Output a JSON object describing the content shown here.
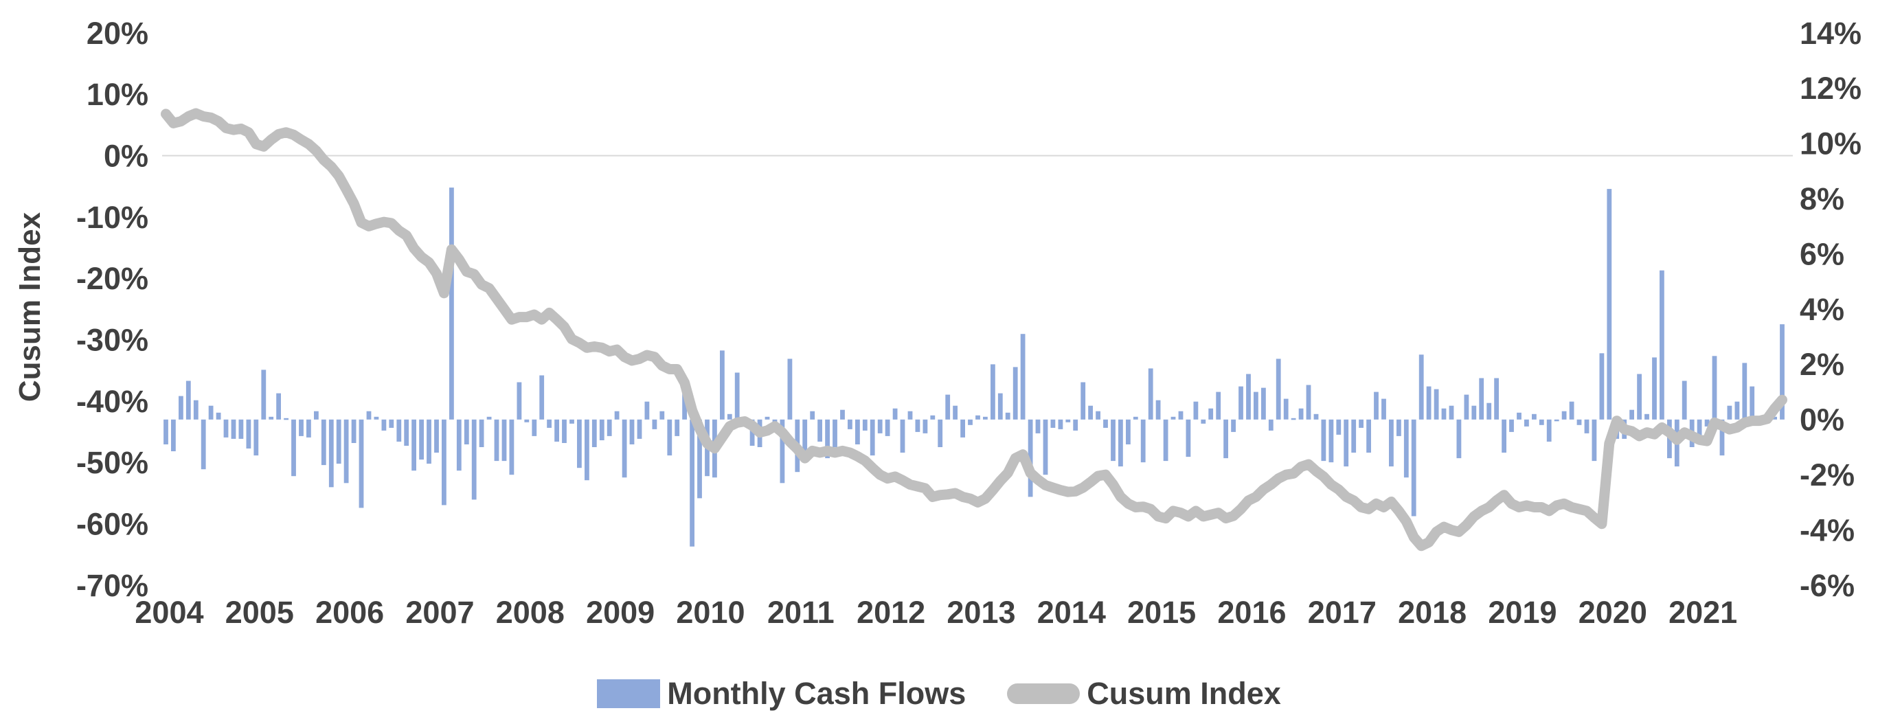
{
  "colors": {
    "bar_fill": "#8EA9DB",
    "line_stroke": "#BFBFBF",
    "text": "#404040",
    "gridline": "#D9D9D9",
    "background": "#FFFFFF"
  },
  "chart_data": {
    "type": "combo",
    "subtype": "bar+line dual axis",
    "x_start": "2004-01",
    "x_end": "2021-12",
    "x_frequency": "monthly",
    "x_tick_years": [
      "2004",
      "2005",
      "2006",
      "2007",
      "2008",
      "2009",
      "2010",
      "2011",
      "2012",
      "2013",
      "2014",
      "2015",
      "2016",
      "2017",
      "2018",
      "2019",
      "2020",
      "2021"
    ],
    "left_axis": {
      "title": "Cusum Index",
      "min": -70,
      "max": 20,
      "tick_values": [
        20,
        10,
        0,
        -10,
        -20,
        -30,
        -40,
        -50,
        -60,
        -70
      ],
      "tick_labels": [
        "20%",
        "10%",
        "0%",
        "-10%",
        "-20%",
        "-30%",
        "-40%",
        "-50%",
        "-60%",
        "-70%"
      ],
      "zero_gridline": true
    },
    "right_axis": {
      "min": -6,
      "max": 14,
      "tick_values": [
        14,
        12,
        10,
        8,
        6,
        4,
        2,
        0,
        -2,
        -4,
        -6
      ],
      "tick_labels": [
        "14%",
        "12%",
        "10%",
        "8%",
        "6%",
        "4%",
        "2%",
        "0%",
        "-2%",
        "-4%",
        "-6%"
      ]
    },
    "legend_position": "bottom-center",
    "series": [
      {
        "name": "Monthly Cash Flows",
        "type": "bar",
        "axis": "right",
        "color": "#8EA9DB",
        "values": [
          -0.9,
          -1.15,
          0.85,
          1.4,
          0.7,
          -1.8,
          0.5,
          0.25,
          -0.65,
          -0.7,
          -0.7,
          -1.05,
          -1.3,
          1.8,
          0.1,
          0.95,
          0.05,
          -2.05,
          -0.6,
          -0.65,
          0.3,
          -1.65,
          -2.45,
          -1.6,
          -2.3,
          -0.85,
          -3.2,
          0.3,
          0.1,
          -0.4,
          -0.3,
          -0.8,
          -0.95,
          -1.85,
          -1.45,
          -1.6,
          -1.2,
          -3.1,
          8.4,
          -1.85,
          -0.9,
          -2.9,
          -1.0,
          0.1,
          -1.5,
          -1.5,
          -2.0,
          1.35,
          -0.1,
          -0.6,
          1.6,
          -0.3,
          -0.8,
          -0.85,
          -0.15,
          -1.75,
          -2.2,
          -1.0,
          -0.75,
          -0.6,
          0.3,
          -2.1,
          -0.9,
          -0.7,
          0.65,
          -0.35,
          0.3,
          -1.3,
          -0.6,
          1.2,
          -4.6,
          -2.85,
          -2.05,
          -2.1,
          2.5,
          0.2,
          1.7,
          -0.1,
          -0.95,
          -1.0,
          0.1,
          -0.3,
          -2.3,
          2.2,
          -1.9,
          -1.4,
          0.3,
          -0.8,
          -1.4,
          -1.0,
          0.35,
          -0.35,
          -0.9,
          -0.4,
          -1.3,
          -0.5,
          -0.6,
          0.4,
          -1.2,
          0.3,
          -0.45,
          -0.5,
          0.15,
          -1.0,
          0.9,
          0.5,
          -0.65,
          -0.2,
          0.15,
          0.1,
          2.0,
          0.95,
          0.25,
          1.9,
          3.1,
          -2.8,
          -0.5,
          -2.0,
          -0.3,
          -0.35,
          -0.1,
          -0.4,
          1.35,
          0.5,
          0.3,
          -0.3,
          -1.5,
          -1.7,
          -0.9,
          0.1,
          -1.55,
          1.85,
          0.7,
          -1.5,
          0.1,
          0.3,
          -1.35,
          0.65,
          -0.15,
          0.4,
          1.0,
          -1.4,
          -0.45,
          1.2,
          1.65,
          1.0,
          1.15,
          -0.4,
          2.2,
          0.75,
          0.05,
          0.4,
          1.25,
          0.2,
          -1.5,
          -1.55,
          -0.55,
          -1.7,
          -1.2,
          -0.3,
          -1.2,
          1.0,
          0.75,
          -1.7,
          -0.6,
          -2.1,
          -3.5,
          2.35,
          1.2,
          1.1,
          0.4,
          0.5,
          -1.4,
          0.9,
          0.5,
          1.5,
          0.6,
          1.5,
          -1.2,
          -0.45,
          0.25,
          -0.25,
          0.2,
          -0.2,
          -0.8,
          -0.05,
          0.3,
          0.65,
          -0.2,
          -0.5,
          -1.5,
          2.4,
          8.35,
          -0.7,
          -0.7,
          0.35,
          1.65,
          0.2,
          2.25,
          5.4,
          -1.4,
          -1.7,
          1.4,
          -1.0,
          -0.9,
          -0.25,
          2.3,
          -1.3,
          0.5,
          0.65,
          2.05,
          1.2,
          -0.15,
          -0.1,
          0.1,
          3.45
        ]
      },
      {
        "name": "Cusum Index",
        "type": "line",
        "axis": "left",
        "color": "#BFBFBF",
        "stroke_width": 15,
        "values": [
          6.8,
          5.3,
          5.6,
          6.4,
          6.9,
          6.4,
          6.2,
          5.6,
          4.5,
          4.2,
          4.4,
          3.8,
          1.9,
          1.5,
          2.6,
          3.5,
          3.8,
          3.4,
          2.6,
          1.9,
          0.8,
          -0.7,
          -1.8,
          -3.3,
          -5.5,
          -7.8,
          -10.9,
          -11.5,
          -11.1,
          -10.8,
          -11.0,
          -12.2,
          -13.0,
          -15.1,
          -16.5,
          -17.4,
          -19.2,
          -22.4,
          -15.3,
          -16.9,
          -18.9,
          -19.3,
          -21.0,
          -21.6,
          -23.3,
          -25.0,
          -26.7,
          -26.3,
          -26.3,
          -25.9,
          -26.7,
          -25.6,
          -26.7,
          -27.9,
          -29.9,
          -30.5,
          -31.3,
          -31.1,
          -31.3,
          -31.9,
          -31.6,
          -32.8,
          -33.4,
          -33.1,
          -32.5,
          -32.8,
          -34.2,
          -34.8,
          -34.8,
          -37.0,
          -41.5,
          -44.5,
          -46.9,
          -47.7,
          -45.9,
          -44.1,
          -43.5,
          -43.3,
          -44.0,
          -45.1,
          -44.8,
          -44.1,
          -45.1,
          -46.6,
          -47.8,
          -49.3,
          -48.1,
          -48.4,
          -48.1,
          -48.4,
          -48.1,
          -48.4,
          -49.0,
          -49.7,
          -50.9,
          -52.0,
          -52.6,
          -52.3,
          -52.9,
          -53.6,
          -53.9,
          -54.2,
          -55.6,
          -55.3,
          -55.2,
          -55.0,
          -55.6,
          -55.9,
          -56.5,
          -55.9,
          -54.5,
          -53.0,
          -51.7,
          -49.3,
          -48.7,
          -51.7,
          -52.8,
          -53.7,
          -54.1,
          -54.5,
          -54.8,
          -54.7,
          -54.1,
          -53.2,
          -52.2,
          -52.0,
          -53.6,
          -55.6,
          -56.7,
          -57.3,
          -57.2,
          -57.6,
          -58.8,
          -59.1,
          -57.9,
          -58.2,
          -58.8,
          -57.9,
          -58.8,
          -58.5,
          -58.2,
          -59.1,
          -58.7,
          -57.6,
          -56.2,
          -55.6,
          -54.4,
          -53.6,
          -52.6,
          -52.0,
          -51.8,
          -50.7,
          -50.3,
          -51.4,
          -52.3,
          -53.6,
          -54.4,
          -55.6,
          -56.2,
          -57.3,
          -57.6,
          -56.7,
          -57.3,
          -56.4,
          -57.9,
          -59.6,
          -62.2,
          -63.6,
          -63.0,
          -61.3,
          -60.5,
          -61.0,
          -61.3,
          -60.2,
          -58.8,
          -57.9,
          -57.3,
          -56.2,
          -55.3,
          -56.7,
          -57.3,
          -57.0,
          -57.3,
          -57.3,
          -57.9,
          -57.0,
          -56.7,
          -57.3,
          -57.6,
          -57.9,
          -59.0,
          -60.0,
          -46.9,
          -43.2,
          -44.6,
          -44.9,
          -45.7,
          -45.1,
          -45.4,
          -44.3,
          -45.1,
          -46.3,
          -45.1,
          -45.7,
          -46.3,
          -46.5,
          -43.5,
          -44.0,
          -44.6,
          -44.3,
          -43.5,
          -43.2,
          -43.2,
          -42.9,
          -41.2,
          -39.8
        ]
      }
    ]
  }
}
